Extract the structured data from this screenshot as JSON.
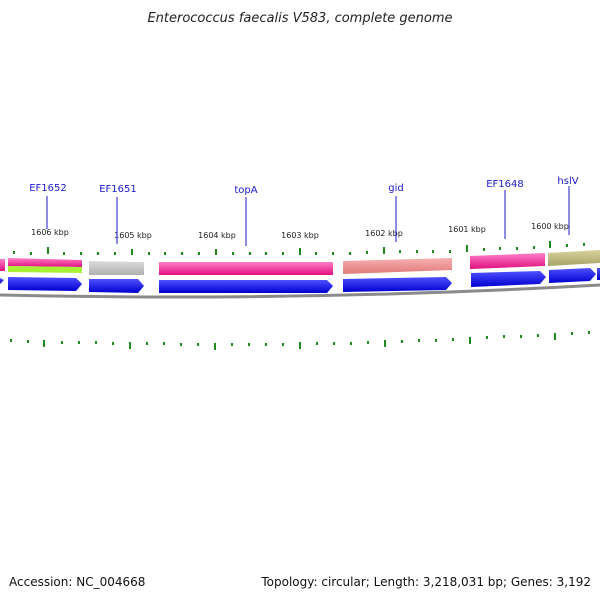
{
  "title": "Enterococcus faecalis V583, complete genome",
  "accession": "Accession: NC_004668",
  "summary": "Topology: circular; Length: 3,218,031 bp; Genes: 3,192",
  "colors": {
    "backbone": "#8a8a8a",
    "tick": "#1f8a1f",
    "gene_label": "#1a1acc",
    "cds_arrow": "#0000ee"
  },
  "kbp_labels": [
    "1606 kbp",
    "1605 kbp",
    "1604 kbp",
    "1603 kbp",
    "1602 kbp",
    "1601 kbp",
    "1600 kbp"
  ],
  "gene_labels": [
    "EF1652",
    "EF1651",
    "topA",
    "gid",
    "EF1648",
    "hslV"
  ]
}
